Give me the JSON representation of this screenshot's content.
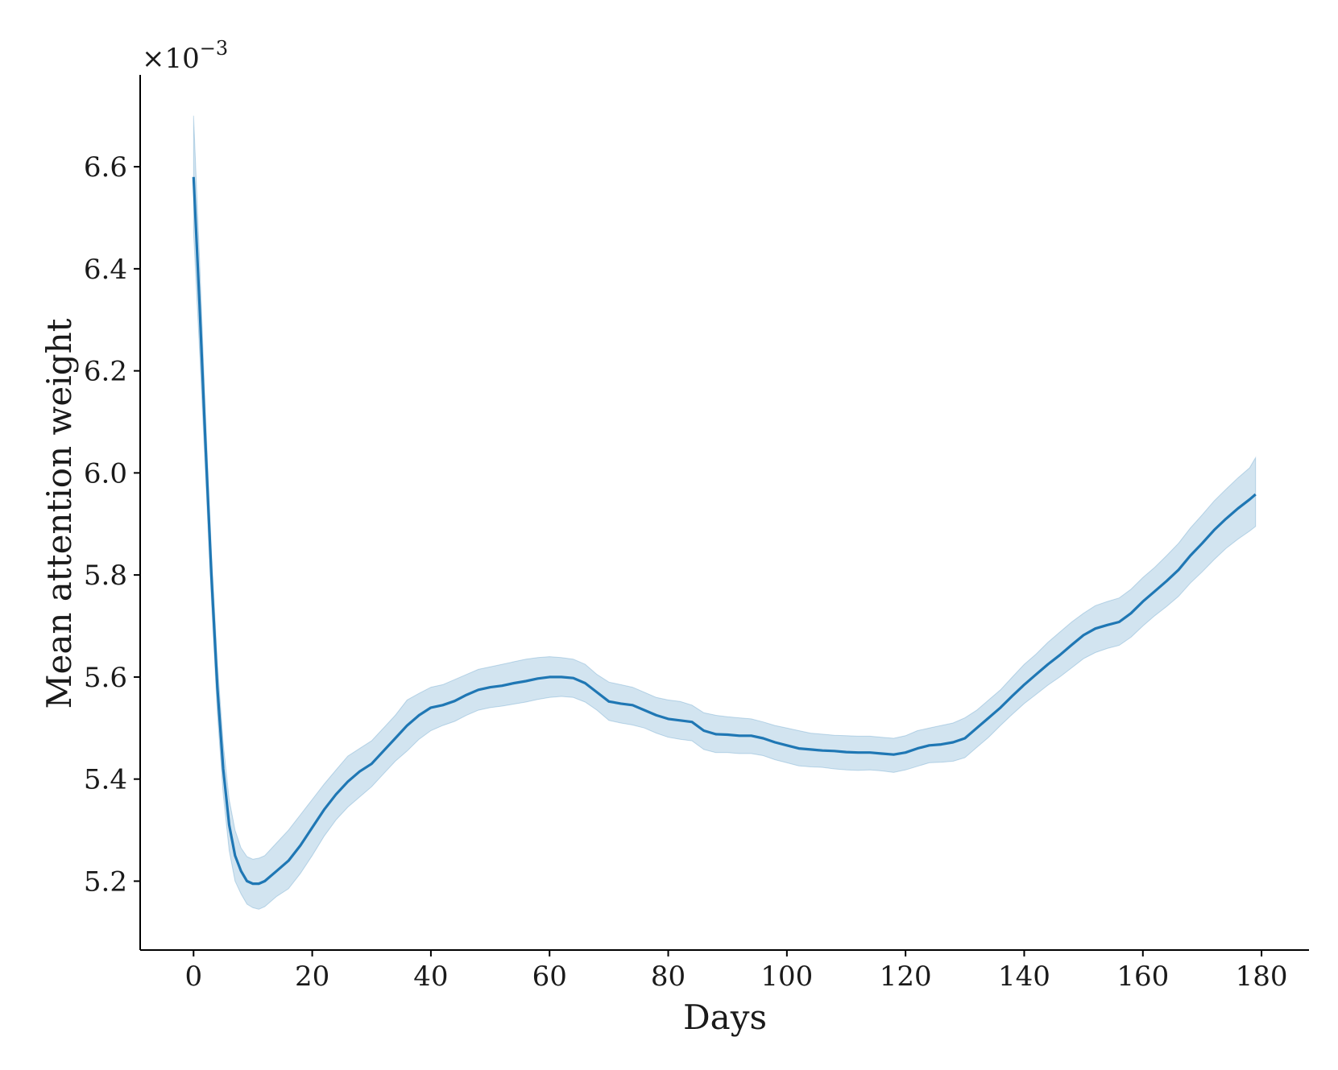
{
  "chart_data": {
    "type": "line",
    "xlabel": "Days",
    "ylabel": "Mean attention weight",
    "y_multiplier_label": "×10",
    "y_multiplier_exponent": "−3",
    "xlim": [
      -9,
      188
    ],
    "ylim": [
      5.065,
      6.78
    ],
    "x_ticks": [
      0,
      20,
      40,
      60,
      80,
      100,
      120,
      140,
      160,
      180
    ],
    "x_tick_labels": [
      "0",
      "20",
      "40",
      "60",
      "80",
      "100",
      "120",
      "140",
      "160",
      "180"
    ],
    "y_ticks": [
      5.2,
      5.4,
      5.6,
      5.8,
      6.0,
      6.2,
      6.4,
      6.6
    ],
    "y_tick_labels": [
      "5.2",
      "5.4",
      "5.6",
      "5.8",
      "6.0",
      "6.2",
      "6.4",
      "6.6"
    ],
    "grid": false,
    "line_color": "#1f77b4",
    "band_color": "#1f77b4",
    "series": [
      {
        "x": [
          0,
          1,
          2,
          3,
          4,
          5,
          6,
          7,
          8,
          9,
          10,
          11,
          12,
          14,
          16,
          18,
          20,
          22,
          24,
          26,
          28,
          30,
          32,
          34,
          36,
          38,
          40,
          42,
          44,
          46,
          48,
          50,
          52,
          54,
          56,
          58,
          60,
          62,
          64,
          66,
          68,
          70,
          72,
          74,
          76,
          78,
          80,
          82,
          84,
          86,
          88,
          90,
          92,
          94,
          96,
          98,
          100,
          102,
          104,
          106,
          108,
          110,
          112,
          114,
          116,
          118,
          120,
          122,
          124,
          126,
          128,
          130,
          132,
          134,
          136,
          138,
          140,
          142,
          144,
          146,
          148,
          150,
          152,
          154,
          156,
          158,
          160,
          162,
          164,
          166,
          168,
          170,
          172,
          174,
          176,
          178,
          179
        ],
        "y": [
          6.58,
          6.33,
          6.06,
          5.8,
          5.58,
          5.42,
          5.31,
          5.25,
          5.22,
          5.2,
          5.195,
          5.195,
          5.2,
          5.22,
          5.24,
          5.27,
          5.305,
          5.34,
          5.37,
          5.395,
          5.415,
          5.43,
          5.455,
          5.48,
          5.505,
          5.525,
          5.54,
          5.545,
          5.553,
          5.565,
          5.575,
          5.58,
          5.583,
          5.588,
          5.592,
          5.597,
          5.6,
          5.6,
          5.598,
          5.588,
          5.57,
          5.552,
          5.548,
          5.545,
          5.535,
          5.525,
          5.518,
          5.515,
          5.512,
          5.495,
          5.488,
          5.487,
          5.485,
          5.485,
          5.48,
          5.472,
          5.466,
          5.46,
          5.458,
          5.456,
          5.455,
          5.453,
          5.452,
          5.452,
          5.45,
          5.448,
          5.452,
          5.46,
          5.466,
          5.468,
          5.472,
          5.48,
          5.5,
          5.52,
          5.54,
          5.563,
          5.585,
          5.605,
          5.625,
          5.643,
          5.663,
          5.682,
          5.695,
          5.702,
          5.708,
          5.725,
          5.748,
          5.768,
          5.788,
          5.81,
          5.838,
          5.862,
          5.888,
          5.91,
          5.93,
          5.948,
          5.958
        ],
        "upper": [
          6.7,
          6.42,
          6.12,
          5.85,
          5.63,
          5.47,
          5.36,
          5.3,
          5.265,
          5.248,
          5.243,
          5.245,
          5.25,
          5.275,
          5.3,
          5.33,
          5.36,
          5.39,
          5.418,
          5.445,
          5.46,
          5.475,
          5.5,
          5.525,
          5.555,
          5.568,
          5.58,
          5.585,
          5.595,
          5.605,
          5.615,
          5.62,
          5.625,
          5.63,
          5.635,
          5.638,
          5.64,
          5.638,
          5.635,
          5.625,
          5.605,
          5.59,
          5.585,
          5.58,
          5.57,
          5.56,
          5.555,
          5.552,
          5.545,
          5.53,
          5.525,
          5.522,
          5.52,
          5.518,
          5.512,
          5.505,
          5.5,
          5.495,
          5.49,
          5.488,
          5.486,
          5.485,
          5.484,
          5.484,
          5.482,
          5.48,
          5.485,
          5.495,
          5.5,
          5.505,
          5.51,
          5.52,
          5.535,
          5.555,
          5.575,
          5.6,
          5.625,
          5.645,
          5.668,
          5.688,
          5.708,
          5.725,
          5.74,
          5.748,
          5.755,
          5.772,
          5.795,
          5.815,
          5.838,
          5.862,
          5.892,
          5.918,
          5.945,
          5.968,
          5.99,
          6.01,
          6.03
        ],
        "lower": [
          6.47,
          6.24,
          6.0,
          5.75,
          5.53,
          5.37,
          5.26,
          5.2,
          5.175,
          5.155,
          5.148,
          5.145,
          5.15,
          5.17,
          5.185,
          5.215,
          5.25,
          5.288,
          5.32,
          5.345,
          5.365,
          5.385,
          5.41,
          5.435,
          5.455,
          5.478,
          5.495,
          5.505,
          5.513,
          5.525,
          5.535,
          5.54,
          5.543,
          5.547,
          5.551,
          5.556,
          5.56,
          5.562,
          5.56,
          5.551,
          5.535,
          5.515,
          5.51,
          5.506,
          5.5,
          5.49,
          5.482,
          5.478,
          5.475,
          5.458,
          5.452,
          5.452,
          5.45,
          5.45,
          5.446,
          5.438,
          5.432,
          5.426,
          5.424,
          5.423,
          5.42,
          5.418,
          5.417,
          5.418,
          5.416,
          5.413,
          5.418,
          5.425,
          5.432,
          5.433,
          5.435,
          5.442,
          5.462,
          5.482,
          5.505,
          5.527,
          5.548,
          5.566,
          5.584,
          5.6,
          5.618,
          5.636,
          5.648,
          5.656,
          5.662,
          5.678,
          5.7,
          5.72,
          5.738,
          5.758,
          5.784,
          5.806,
          5.83,
          5.852,
          5.87,
          5.886,
          5.895
        ]
      }
    ]
  }
}
